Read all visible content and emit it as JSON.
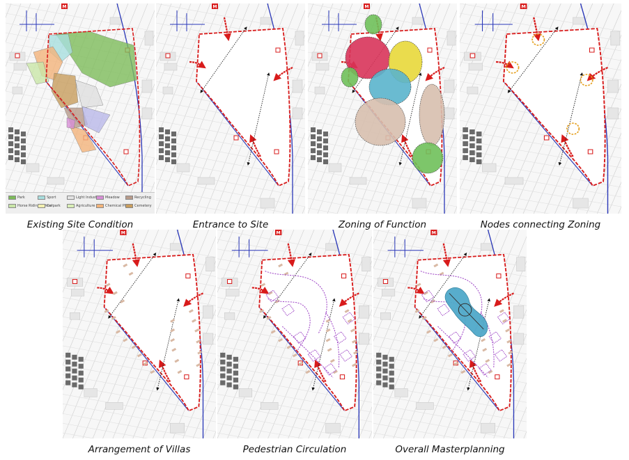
{
  "captions": {
    "p1": "Existing Site Condition",
    "p2": "Entrance to Site",
    "p3": "Zoning of Function",
    "p4": "Nodes connecting Zoning",
    "p5": "Arrangement of Villas",
    "p6": "Pedestrian Circulation",
    "p7": "Overall Masterplanning"
  },
  "metro_marker": "M",
  "legend": [
    {
      "label": "Park",
      "color": "#7dbb5a"
    },
    {
      "label": "Horse Riding School",
      "color": "#c9e6a8"
    },
    {
      "label": "Sport",
      "color": "#a8dede"
    },
    {
      "label": "Carpark",
      "color": "#f3f0b0"
    },
    {
      "label": "Light Industry",
      "color": "#e4e4e4"
    },
    {
      "label": "Agriculture",
      "color": "#d9efb7"
    },
    {
      "label": "Meadow",
      "color": "#d78fd6"
    },
    {
      "label": "Chemical Plant",
      "color": "#f2b37a"
    },
    {
      "label": "Recycling",
      "color": "#b79a8a"
    },
    {
      "label": "Cemetery",
      "color": "#c79c5c"
    }
  ],
  "colors": {
    "boundary": "#d81b1b",
    "road": "#2a37b8",
    "zone_red": "#d8345a",
    "zone_yellow": "#e8d83a",
    "zone_blue": "#5ab4cc",
    "zone_tan": "#d7bfae",
    "zone_green": "#6fc05a",
    "node": "#e5a020",
    "path": "#9b3fc4",
    "lake": "#4fa9c9"
  }
}
